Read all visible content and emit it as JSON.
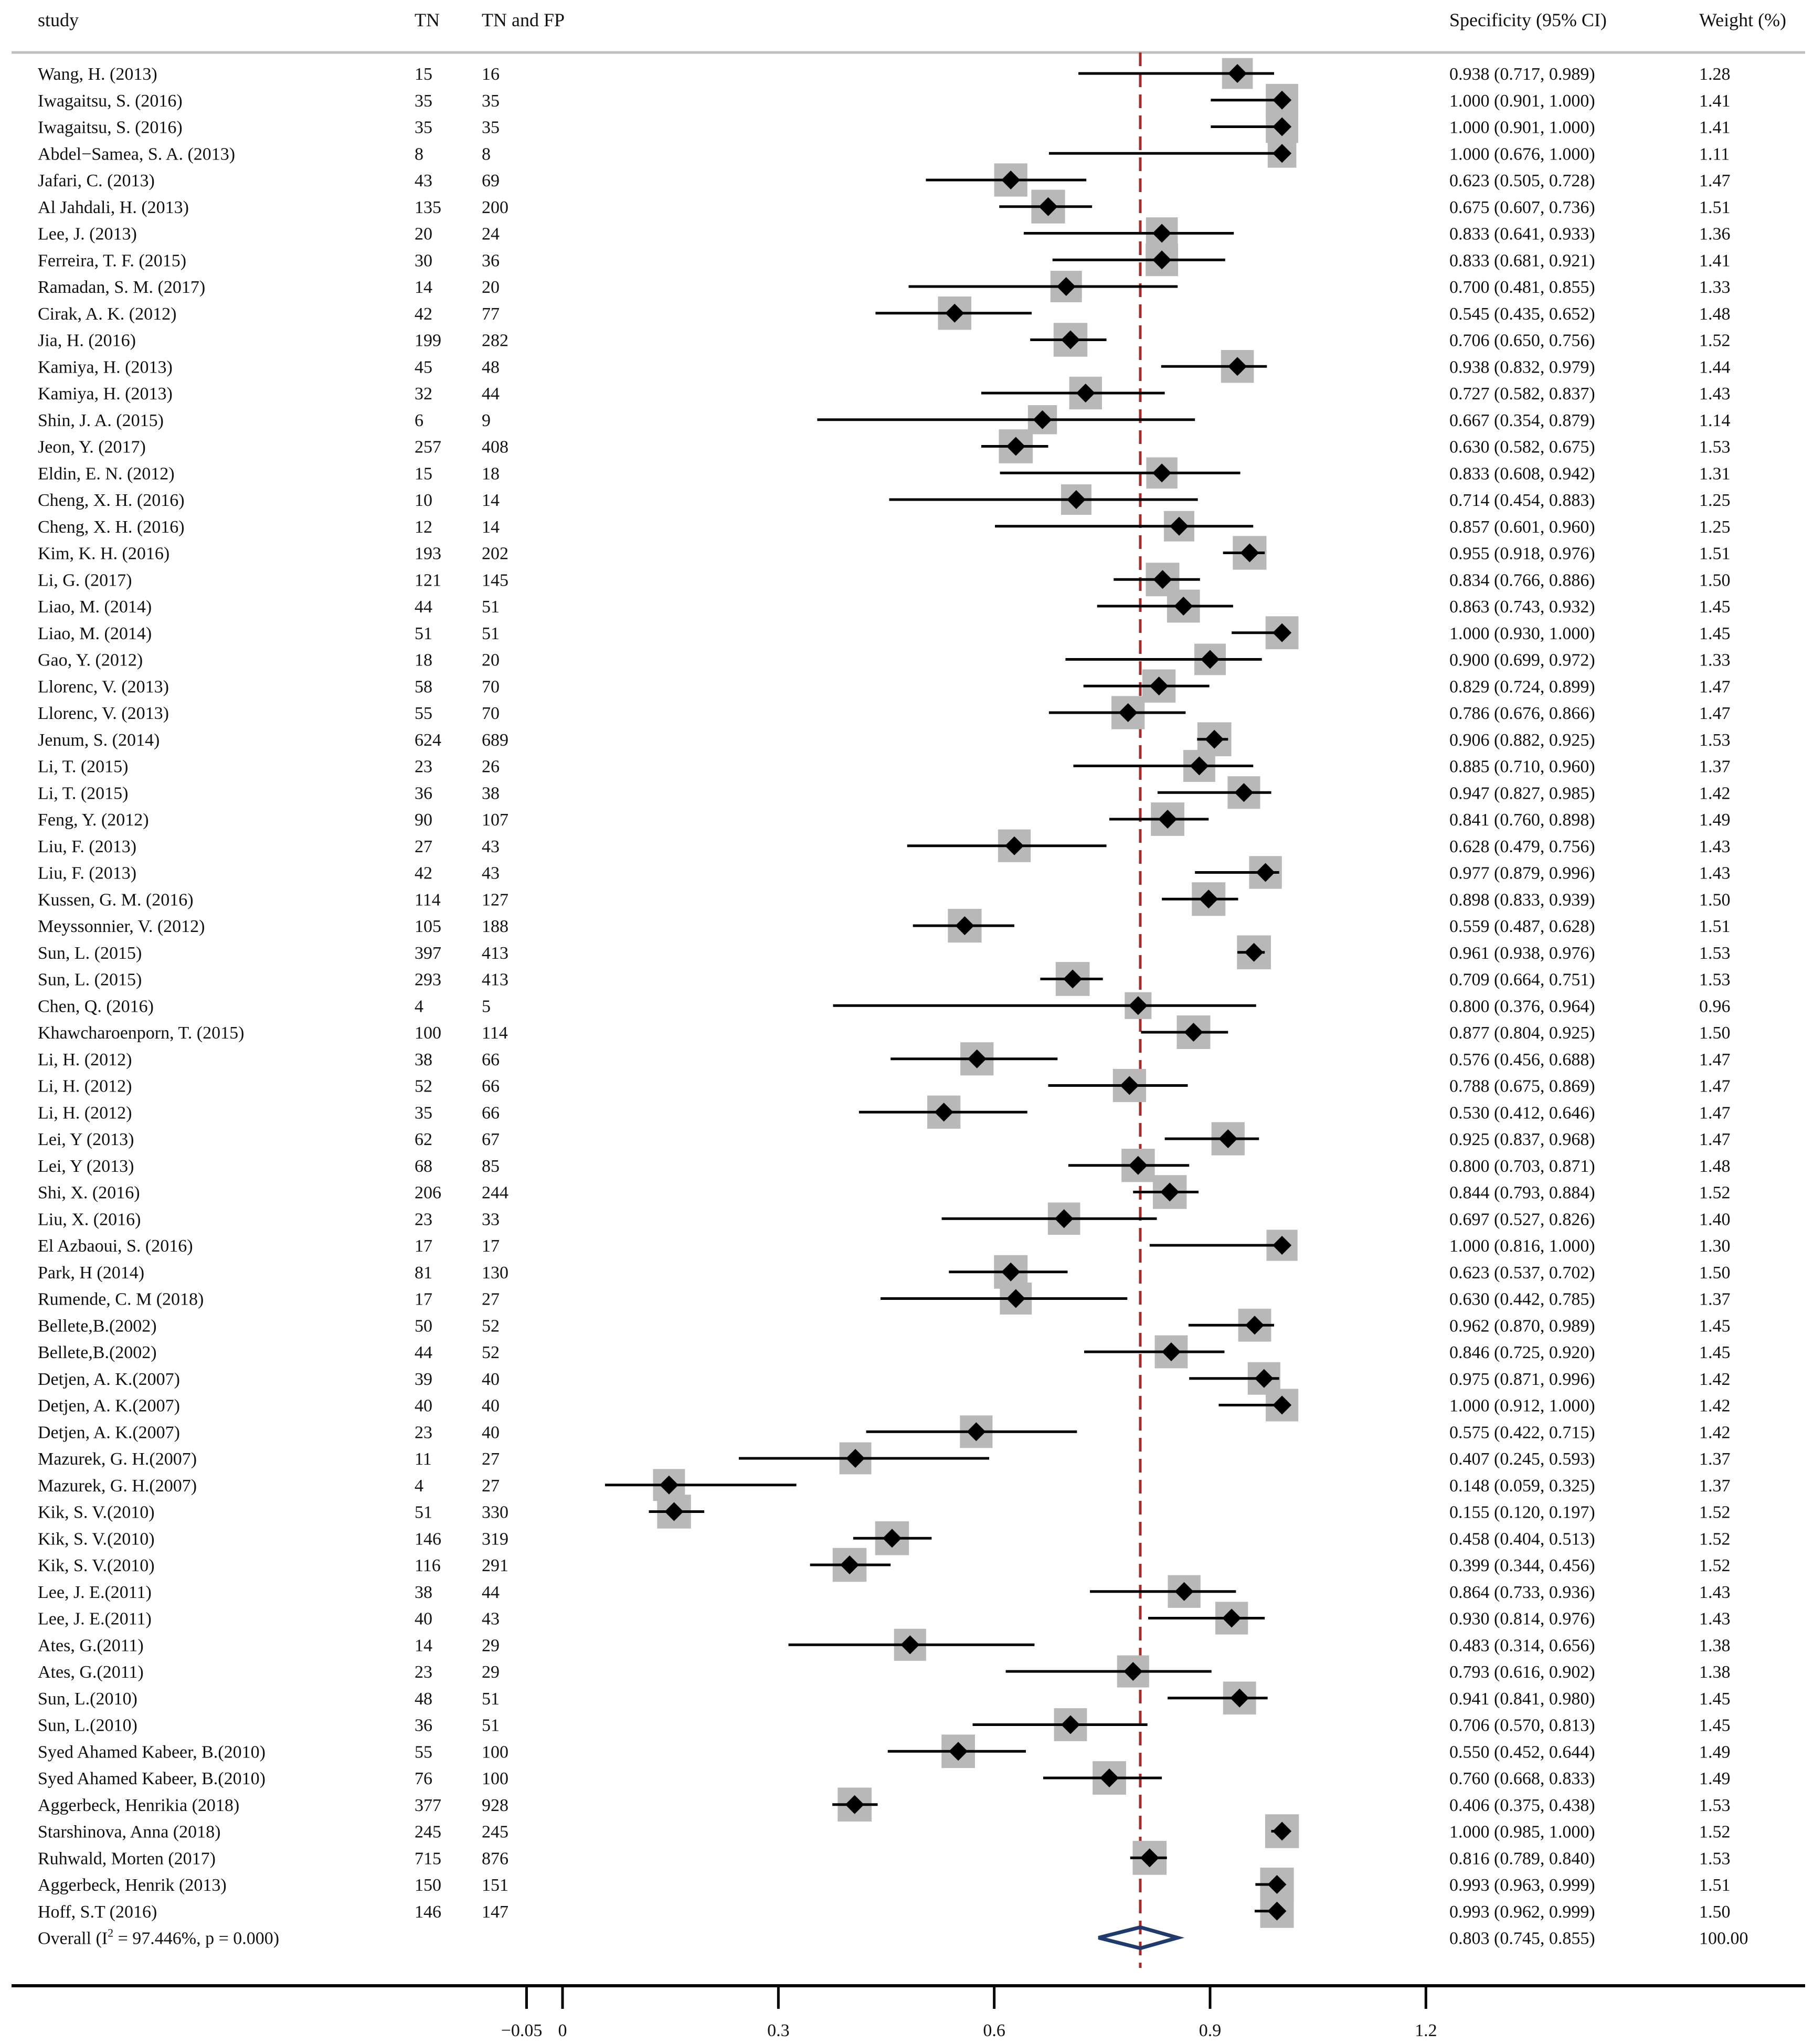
{
  "chart_data": {
    "type": "forest",
    "headers": {
      "study": "study",
      "tn": "TN",
      "tnfp": "TN and FP",
      "ci": "Specificity (95% CI)",
      "weight": "Weight (%)"
    },
    "rows": [
      {
        "study": "Wang, H. (2013)",
        "tn": "15",
        "tnfp": "16",
        "est": 0.938,
        "lo": 0.717,
        "hi": 0.989,
        "ci": "0.938 (0.717, 0.989)",
        "weight": "1.28"
      },
      {
        "study": "Iwagaitsu, S. (2016)",
        "tn": "35",
        "tnfp": "35",
        "est": 1.0,
        "lo": 0.901,
        "hi": 1.0,
        "ci": "1.000 (0.901, 1.000)",
        "weight": "1.41"
      },
      {
        "study": "Iwagaitsu, S. (2016)",
        "tn": "35",
        "tnfp": "35",
        "est": 1.0,
        "lo": 0.901,
        "hi": 1.0,
        "ci": "1.000 (0.901, 1.000)",
        "weight": "1.41"
      },
      {
        "study": "Abdel−Samea, S. A. (2013)",
        "tn": "8",
        "tnfp": "8",
        "est": 1.0,
        "lo": 0.676,
        "hi": 1.0,
        "ci": "1.000 (0.676, 1.000)",
        "weight": "1.11"
      },
      {
        "study": "Jafari, C. (2013)",
        "tn": "43",
        "tnfp": "69",
        "est": 0.623,
        "lo": 0.505,
        "hi": 0.728,
        "ci": "0.623 (0.505, 0.728)",
        "weight": "1.47"
      },
      {
        "study": "Al Jahdali, H. (2013)",
        "tn": "135",
        "tnfp": "200",
        "est": 0.675,
        "lo": 0.607,
        "hi": 0.736,
        "ci": "0.675 (0.607, 0.736)",
        "weight": "1.51"
      },
      {
        "study": "Lee, J. (2013)",
        "tn": "20",
        "tnfp": "24",
        "est": 0.833,
        "lo": 0.641,
        "hi": 0.933,
        "ci": "0.833 (0.641, 0.933)",
        "weight": "1.36"
      },
      {
        "study": "Ferreira, T. F. (2015)",
        "tn": "30",
        "tnfp": "36",
        "est": 0.833,
        "lo": 0.681,
        "hi": 0.921,
        "ci": "0.833 (0.681, 0.921)",
        "weight": "1.41"
      },
      {
        "study": "Ramadan, S. M. (2017)",
        "tn": "14",
        "tnfp": "20",
        "est": 0.7,
        "lo": 0.481,
        "hi": 0.855,
        "ci": "0.700 (0.481, 0.855)",
        "weight": "1.33"
      },
      {
        "study": "Cirak, A. K. (2012)",
        "tn": "42",
        "tnfp": "77",
        "est": 0.545,
        "lo": 0.435,
        "hi": 0.652,
        "ci": "0.545 (0.435, 0.652)",
        "weight": "1.48"
      },
      {
        "study": "Jia, H. (2016)",
        "tn": "199",
        "tnfp": "282",
        "est": 0.706,
        "lo": 0.65,
        "hi": 0.756,
        "ci": "0.706 (0.650, 0.756)",
        "weight": "1.52"
      },
      {
        "study": "Kamiya, H. (2013)",
        "tn": "45",
        "tnfp": "48",
        "est": 0.938,
        "lo": 0.832,
        "hi": 0.979,
        "ci": "0.938 (0.832, 0.979)",
        "weight": "1.44"
      },
      {
        "study": "Kamiya, H. (2013)",
        "tn": "32",
        "tnfp": "44",
        "est": 0.727,
        "lo": 0.582,
        "hi": 0.837,
        "ci": "0.727 (0.582, 0.837)",
        "weight": "1.43"
      },
      {
        "study": "Shin, J. A. (2015)",
        "tn": "6",
        "tnfp": "9",
        "est": 0.667,
        "lo": 0.354,
        "hi": 0.879,
        "ci": "0.667 (0.354, 0.879)",
        "weight": "1.14"
      },
      {
        "study": "Jeon, Y. (2017)",
        "tn": "257",
        "tnfp": "408",
        "est": 0.63,
        "lo": 0.582,
        "hi": 0.675,
        "ci": "0.630 (0.582, 0.675)",
        "weight": "1.53"
      },
      {
        "study": "Eldin, E. N. (2012)",
        "tn": "15",
        "tnfp": "18",
        "est": 0.833,
        "lo": 0.608,
        "hi": 0.942,
        "ci": "0.833 (0.608, 0.942)",
        "weight": "1.31"
      },
      {
        "study": "Cheng, X. H. (2016)",
        "tn": "10",
        "tnfp": "14",
        "est": 0.714,
        "lo": 0.454,
        "hi": 0.883,
        "ci": "0.714 (0.454, 0.883)",
        "weight": "1.25"
      },
      {
        "study": "Cheng, X. H. (2016)",
        "tn": "12",
        "tnfp": "14",
        "est": 0.857,
        "lo": 0.601,
        "hi": 0.96,
        "ci": "0.857 (0.601, 0.960)",
        "weight": "1.25"
      },
      {
        "study": "Kim, K. H. (2016)",
        "tn": "193",
        "tnfp": "202",
        "est": 0.955,
        "lo": 0.918,
        "hi": 0.976,
        "ci": "0.955 (0.918, 0.976)",
        "weight": "1.51"
      },
      {
        "study": "Li, G. (2017)",
        "tn": "121",
        "tnfp": "145",
        "est": 0.834,
        "lo": 0.766,
        "hi": 0.886,
        "ci": "0.834 (0.766, 0.886)",
        "weight": "1.50"
      },
      {
        "study": "Liao, M. (2014)",
        "tn": "44",
        "tnfp": "51",
        "est": 0.863,
        "lo": 0.743,
        "hi": 0.932,
        "ci": "0.863 (0.743, 0.932)",
        "weight": "1.45"
      },
      {
        "study": "Liao, M. (2014)",
        "tn": "51",
        "tnfp": "51",
        "est": 1.0,
        "lo": 0.93,
        "hi": 1.0,
        "ci": "1.000 (0.930, 1.000)",
        "weight": "1.45"
      },
      {
        "study": "Gao, Y. (2012)",
        "tn": "18",
        "tnfp": "20",
        "est": 0.9,
        "lo": 0.699,
        "hi": 0.972,
        "ci": "0.900 (0.699, 0.972)",
        "weight": "1.33"
      },
      {
        "study": "Llorenc, V. (2013)",
        "tn": "58",
        "tnfp": "70",
        "est": 0.829,
        "lo": 0.724,
        "hi": 0.899,
        "ci": "0.829 (0.724, 0.899)",
        "weight": "1.47"
      },
      {
        "study": "Llorenc, V. (2013)",
        "tn": "55",
        "tnfp": "70",
        "est": 0.786,
        "lo": 0.676,
        "hi": 0.866,
        "ci": "0.786 (0.676, 0.866)",
        "weight": "1.47"
      },
      {
        "study": "Jenum, S. (2014)",
        "tn": "624",
        "tnfp": "689",
        "est": 0.906,
        "lo": 0.882,
        "hi": 0.925,
        "ci": "0.906 (0.882, 0.925)",
        "weight": "1.53"
      },
      {
        "study": "Li, T. (2015)",
        "tn": "23",
        "tnfp": "26",
        "est": 0.885,
        "lo": 0.71,
        "hi": 0.96,
        "ci": "0.885 (0.710, 0.960)",
        "weight": "1.37"
      },
      {
        "study": "Li, T. (2015)",
        "tn": "36",
        "tnfp": "38",
        "est": 0.947,
        "lo": 0.827,
        "hi": 0.985,
        "ci": "0.947 (0.827, 0.985)",
        "weight": "1.42"
      },
      {
        "study": "Feng, Y. (2012)",
        "tn": "90",
        "tnfp": "107",
        "est": 0.841,
        "lo": 0.76,
        "hi": 0.898,
        "ci": "0.841 (0.760, 0.898)",
        "weight": "1.49"
      },
      {
        "study": "Liu, F. (2013)",
        "tn": "27",
        "tnfp": "43",
        "est": 0.628,
        "lo": 0.479,
        "hi": 0.756,
        "ci": "0.628 (0.479, 0.756)",
        "weight": "1.43"
      },
      {
        "study": "Liu, F. (2013)",
        "tn": "42",
        "tnfp": "43",
        "est": 0.977,
        "lo": 0.879,
        "hi": 0.996,
        "ci": "0.977 (0.879, 0.996)",
        "weight": "1.43"
      },
      {
        "study": "Kussen, G. M. (2016)",
        "tn": "114",
        "tnfp": "127",
        "est": 0.898,
        "lo": 0.833,
        "hi": 0.939,
        "ci": "0.898 (0.833, 0.939)",
        "weight": "1.50"
      },
      {
        "study": "Meyssonnier, V. (2012)",
        "tn": "105",
        "tnfp": "188",
        "est": 0.559,
        "lo": 0.487,
        "hi": 0.628,
        "ci": "0.559 (0.487, 0.628)",
        "weight": "1.51"
      },
      {
        "study": "Sun, L. (2015)",
        "tn": "397",
        "tnfp": "413",
        "est": 0.961,
        "lo": 0.938,
        "hi": 0.976,
        "ci": "0.961 (0.938, 0.976)",
        "weight": "1.53"
      },
      {
        "study": "Sun, L. (2015)",
        "tn": "293",
        "tnfp": "413",
        "est": 0.709,
        "lo": 0.664,
        "hi": 0.751,
        "ci": "0.709 (0.664, 0.751)",
        "weight": "1.53"
      },
      {
        "study": "Chen, Q. (2016)",
        "tn": "4",
        "tnfp": "5",
        "est": 0.8,
        "lo": 0.376,
        "hi": 0.964,
        "ci": "0.800 (0.376, 0.964)",
        "weight": "0.96"
      },
      {
        "study": "Khawcharoenporn, T. (2015)",
        "tn": "100",
        "tnfp": "114",
        "est": 0.877,
        "lo": 0.804,
        "hi": 0.925,
        "ci": "0.877 (0.804, 0.925)",
        "weight": "1.50"
      },
      {
        "study": "Li, H. (2012)",
        "tn": "38",
        "tnfp": "66",
        "est": 0.576,
        "lo": 0.456,
        "hi": 0.688,
        "ci": "0.576 (0.456, 0.688)",
        "weight": "1.47"
      },
      {
        "study": "Li, H. (2012)",
        "tn": "52",
        "tnfp": "66",
        "est": 0.788,
        "lo": 0.675,
        "hi": 0.869,
        "ci": "0.788 (0.675, 0.869)",
        "weight": "1.47"
      },
      {
        "study": "Li, H. (2012)",
        "tn": "35",
        "tnfp": "66",
        "est": 0.53,
        "lo": 0.412,
        "hi": 0.646,
        "ci": "0.530 (0.412, 0.646)",
        "weight": "1.47"
      },
      {
        "study": "Lei, Y (2013)",
        "tn": "62",
        "tnfp": "67",
        "est": 0.925,
        "lo": 0.837,
        "hi": 0.968,
        "ci": "0.925 (0.837, 0.968)",
        "weight": "1.47"
      },
      {
        "study": "Lei, Y (2013)",
        "tn": "68",
        "tnfp": "85",
        "est": 0.8,
        "lo": 0.703,
        "hi": 0.871,
        "ci": "0.800 (0.703, 0.871)",
        "weight": "1.48"
      },
      {
        "study": "Shi, X. (2016)",
        "tn": "206",
        "tnfp": "244",
        "est": 0.844,
        "lo": 0.793,
        "hi": 0.884,
        "ci": "0.844 (0.793, 0.884)",
        "weight": "1.52"
      },
      {
        "study": "Liu, X. (2016)",
        "tn": "23",
        "tnfp": "33",
        "est": 0.697,
        "lo": 0.527,
        "hi": 0.826,
        "ci": "0.697 (0.527, 0.826)",
        "weight": "1.40"
      },
      {
        "study": "El Azbaoui, S. (2016)",
        "tn": "17",
        "tnfp": "17",
        "est": 1.0,
        "lo": 0.816,
        "hi": 1.0,
        "ci": "1.000 (0.816, 1.000)",
        "weight": "1.30"
      },
      {
        "study": "Park, H (2014)",
        "tn": "81",
        "tnfp": "130",
        "est": 0.623,
        "lo": 0.537,
        "hi": 0.702,
        "ci": "0.623 (0.537, 0.702)",
        "weight": "1.50"
      },
      {
        "study": "Rumende, C. M (2018)",
        "tn": "17",
        "tnfp": "27",
        "est": 0.63,
        "lo": 0.442,
        "hi": 0.785,
        "ci": "0.630 (0.442, 0.785)",
        "weight": "1.37"
      },
      {
        "study": "Bellete,B.(2002)",
        "tn": "50",
        "tnfp": "52",
        "est": 0.962,
        "lo": 0.87,
        "hi": 0.989,
        "ci": "0.962 (0.870, 0.989)",
        "weight": "1.45"
      },
      {
        "study": "Bellete,B.(2002)",
        "tn": "44",
        "tnfp": "52",
        "est": 0.846,
        "lo": 0.725,
        "hi": 0.92,
        "ci": "0.846 (0.725, 0.920)",
        "weight": "1.45"
      },
      {
        "study": "Detjen, A. K.(2007)",
        "tn": "39",
        "tnfp": "40",
        "est": 0.975,
        "lo": 0.871,
        "hi": 0.996,
        "ci": "0.975 (0.871, 0.996)",
        "weight": "1.42"
      },
      {
        "study": "Detjen, A. K.(2007)",
        "tn": "40",
        "tnfp": "40",
        "est": 1.0,
        "lo": 0.912,
        "hi": 1.0,
        "ci": "1.000 (0.912, 1.000)",
        "weight": "1.42"
      },
      {
        "study": "Detjen, A. K.(2007)",
        "tn": "23",
        "tnfp": "40",
        "est": 0.575,
        "lo": 0.422,
        "hi": 0.715,
        "ci": "0.575 (0.422, 0.715)",
        "weight": "1.42"
      },
      {
        "study": "Mazurek, G. H.(2007)",
        "tn": "11",
        "tnfp": "27",
        "est": 0.407,
        "lo": 0.245,
        "hi": 0.593,
        "ci": "0.407 (0.245, 0.593)",
        "weight": "1.37"
      },
      {
        "study": "Mazurek, G. H.(2007)",
        "tn": "4",
        "tnfp": "27",
        "est": 0.148,
        "lo": 0.059,
        "hi": 0.325,
        "ci": "0.148 (0.059, 0.325)",
        "weight": "1.37"
      },
      {
        "study": "Kik, S. V.(2010)",
        "tn": "51",
        "tnfp": "330",
        "est": 0.155,
        "lo": 0.12,
        "hi": 0.197,
        "ci": "0.155 (0.120, 0.197)",
        "weight": "1.52"
      },
      {
        "study": "Kik, S. V.(2010)",
        "tn": "146",
        "tnfp": "319",
        "est": 0.458,
        "lo": 0.404,
        "hi": 0.513,
        "ci": "0.458 (0.404, 0.513)",
        "weight": "1.52"
      },
      {
        "study": "Kik, S. V.(2010)",
        "tn": "116",
        "tnfp": "291",
        "est": 0.399,
        "lo": 0.344,
        "hi": 0.456,
        "ci": "0.399 (0.344, 0.456)",
        "weight": "1.52"
      },
      {
        "study": "Lee, J. E.(2011)",
        "tn": "38",
        "tnfp": "44",
        "est": 0.864,
        "lo": 0.733,
        "hi": 0.936,
        "ci": "0.864 (0.733, 0.936)",
        "weight": "1.43"
      },
      {
        "study": "Lee, J. E.(2011)",
        "tn": "40",
        "tnfp": "43",
        "est": 0.93,
        "lo": 0.814,
        "hi": 0.976,
        "ci": "0.930 (0.814, 0.976)",
        "weight": "1.43"
      },
      {
        "study": "Ates, G.(2011)",
        "tn": "14",
        "tnfp": "29",
        "est": 0.483,
        "lo": 0.314,
        "hi": 0.656,
        "ci": "0.483 (0.314, 0.656)",
        "weight": "1.38"
      },
      {
        "study": "Ates, G.(2011)",
        "tn": "23",
        "tnfp": "29",
        "est": 0.793,
        "lo": 0.616,
        "hi": 0.902,
        "ci": "0.793 (0.616, 0.902)",
        "weight": "1.38"
      },
      {
        "study": "Sun, L.(2010)",
        "tn": "48",
        "tnfp": "51",
        "est": 0.941,
        "lo": 0.841,
        "hi": 0.98,
        "ci": "0.941 (0.841, 0.980)",
        "weight": "1.45"
      },
      {
        "study": "Sun, L.(2010)",
        "tn": "36",
        "tnfp": "51",
        "est": 0.706,
        "lo": 0.57,
        "hi": 0.813,
        "ci": "0.706 (0.570, 0.813)",
        "weight": "1.45"
      },
      {
        "study": "Syed Ahamed Kabeer, B.(2010)",
        "tn": "55",
        "tnfp": "100",
        "est": 0.55,
        "lo": 0.452,
        "hi": 0.644,
        "ci": "0.550 (0.452, 0.644)",
        "weight": "1.49"
      },
      {
        "study": "Syed Ahamed Kabeer, B.(2010)",
        "tn": "76",
        "tnfp": "100",
        "est": 0.76,
        "lo": 0.668,
        "hi": 0.833,
        "ci": "0.760 (0.668, 0.833)",
        "weight": "1.49"
      },
      {
        "study": "Aggerbeck, Henrikia (2018)",
        "tn": "377",
        "tnfp": "928",
        "est": 0.406,
        "lo": 0.375,
        "hi": 0.438,
        "ci": "0.406 (0.375, 0.438)",
        "weight": "1.53"
      },
      {
        "study": "Starshinova, Anna (2018)",
        "tn": "245",
        "tnfp": "245",
        "est": 1.0,
        "lo": 0.985,
        "hi": 1.0,
        "ci": "1.000 (0.985, 1.000)",
        "weight": "1.52"
      },
      {
        "study": "Ruhwald, Morten (2017)",
        "tn": "715",
        "tnfp": "876",
        "est": 0.816,
        "lo": 0.789,
        "hi": 0.84,
        "ci": "0.816 (0.789, 0.840)",
        "weight": "1.53"
      },
      {
        "study": "Aggerbeck, Henrik (2013)",
        "tn": "150",
        "tnfp": "151",
        "est": 0.993,
        "lo": 0.963,
        "hi": 0.999,
        "ci": "0.993 (0.963, 0.999)",
        "weight": "1.51"
      },
      {
        "study": "Hoff, S.T (2016)",
        "tn": "146",
        "tnfp": "147",
        "est": 0.993,
        "lo": 0.962,
        "hi": 0.999,
        "ci": "0.993 (0.962, 0.999)",
        "weight": "1.50"
      }
    ],
    "overall": {
      "label_prefix": "Overall  (I",
      "label_sup": "2",
      "label_suffix": " = 97.446%, p = 0.000)",
      "est": 0.803,
      "lo": 0.745,
      "hi": 0.855,
      "ci": "0.803 (0.745, 0.855)",
      "weight": "100.00"
    },
    "x_axis": {
      "ticks": [
        -0.05,
        0,
        0.3,
        0.6,
        0.9,
        1.2
      ],
      "tick_labels": [
        "−0.05",
        "0",
        "0.3",
        "0.6",
        "0.9",
        "1.2"
      ]
    },
    "reference_line": 0.803,
    "colors": {
      "text": "#111111",
      "ci_line": "#000000",
      "box": "#b8b8b8",
      "ref_line": "#a52a2a",
      "overall_diamond": "#1f3a6e",
      "rule": "#bfbfbf"
    }
  }
}
